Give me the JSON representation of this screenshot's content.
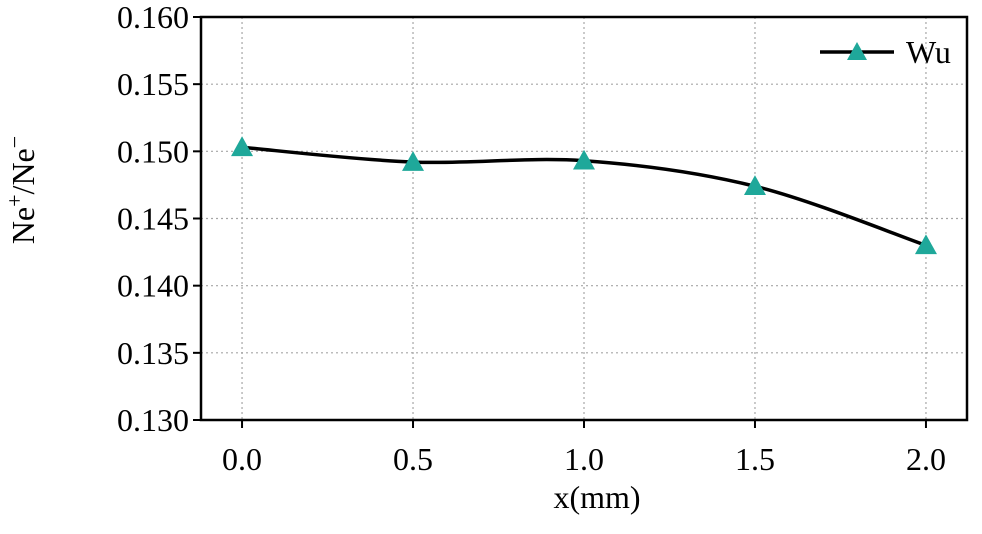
{
  "chart_data": {
    "type": "line",
    "title": "",
    "xlabel": "x(mm)",
    "ylabel": {
      "base": "Ne",
      "sup1": "+",
      "sep": "/Ne",
      "sup2": "−"
    },
    "x": [
      0.0,
      0.5,
      1.0,
      1.5,
      2.0
    ],
    "xlim": [
      -0.12,
      2.12
    ],
    "ylim": [
      0.13,
      0.16
    ],
    "xticks": [
      "0.0",
      "0.5",
      "1.0",
      "1.5",
      "2.0"
    ],
    "yticks": [
      "0.130",
      "0.135",
      "0.140",
      "0.145",
      "0.150",
      "0.155",
      "0.160"
    ],
    "grid": true,
    "legend_position": "top-right",
    "series": [
      {
        "name": "Wu",
        "values": [
          0.1503,
          0.1492,
          0.1493,
          0.1474,
          0.143
        ],
        "line_color": "#000000",
        "marker": "triangle",
        "marker_color": "#1fa89a"
      }
    ]
  }
}
